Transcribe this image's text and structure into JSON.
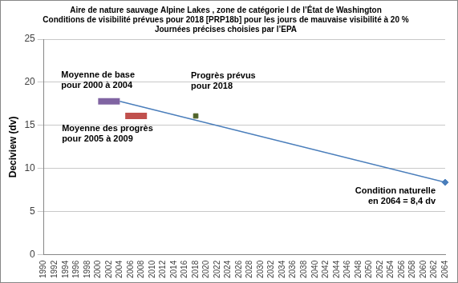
{
  "chart_data": {
    "type": "line",
    "title": [
      "Aire de nature sauvage Alpine Lakes , zone de catégorie I de l’État de Washington",
      "Conditions de visibilité prévues pour 2018 [PRP18b] pour les jours de mauvaise visibilité à 20 %",
      "Journées précises choisies par l’EPA"
    ],
    "y_label": "Deciview (dv)",
    "xlim": [
      1990,
      2064
    ],
    "xticks": [
      1990,
      1992,
      1994,
      1996,
      1998,
      2000,
      2002,
      2004,
      2006,
      2008,
      2010,
      2012,
      2014,
      2016,
      2018,
      2020,
      2022,
      2024,
      2026,
      2028,
      2030,
      2032,
      2034,
      2036,
      2038,
      2040,
      2042,
      2044,
      2046,
      2048,
      2050,
      2052,
      2054,
      2056,
      2058,
      2060,
      2062,
      2064
    ],
    "ylim": [
      0,
      25
    ],
    "yticks": [
      0,
      5,
      10,
      15,
      20,
      25
    ],
    "grid": "y",
    "series": [
      {
        "x": [
          2000,
          2004
        ],
        "values": [
          17.8,
          17.8
        ],
        "color": "#8064a2",
        "line_style": "thick",
        "marker": "none",
        "annotation": [
          "Moyenne de base",
          "pour 2000 à 2004"
        ]
      },
      {
        "x": [
          2005,
          2009
        ],
        "values": [
          16.1,
          16.1
        ],
        "color": "#c0504d",
        "line_style": "thick",
        "marker": "none",
        "annotation": [
          "Moyenne des progrès",
          "pour 2005 à 2009"
        ]
      },
      {
        "x": [
          2018
        ],
        "values": [
          16.1
        ],
        "color": "#4f6228",
        "line_style": "none",
        "marker": "square",
        "annotation": [
          "Progrès prévus",
          "pour 2018"
        ]
      },
      {
        "x": [
          2004,
          2064
        ],
        "values": [
          17.8,
          8.4
        ],
        "color": "#4a7ebb",
        "line_style": "solid",
        "marker": "none"
      },
      {
        "x": [
          2064
        ],
        "values": [
          8.4
        ],
        "color": "#4a7ebb",
        "line_style": "none",
        "marker": "diamond",
        "annotation": [
          "Condition naturelle",
          "en 2064 = 8,4 dv"
        ]
      }
    ]
  }
}
